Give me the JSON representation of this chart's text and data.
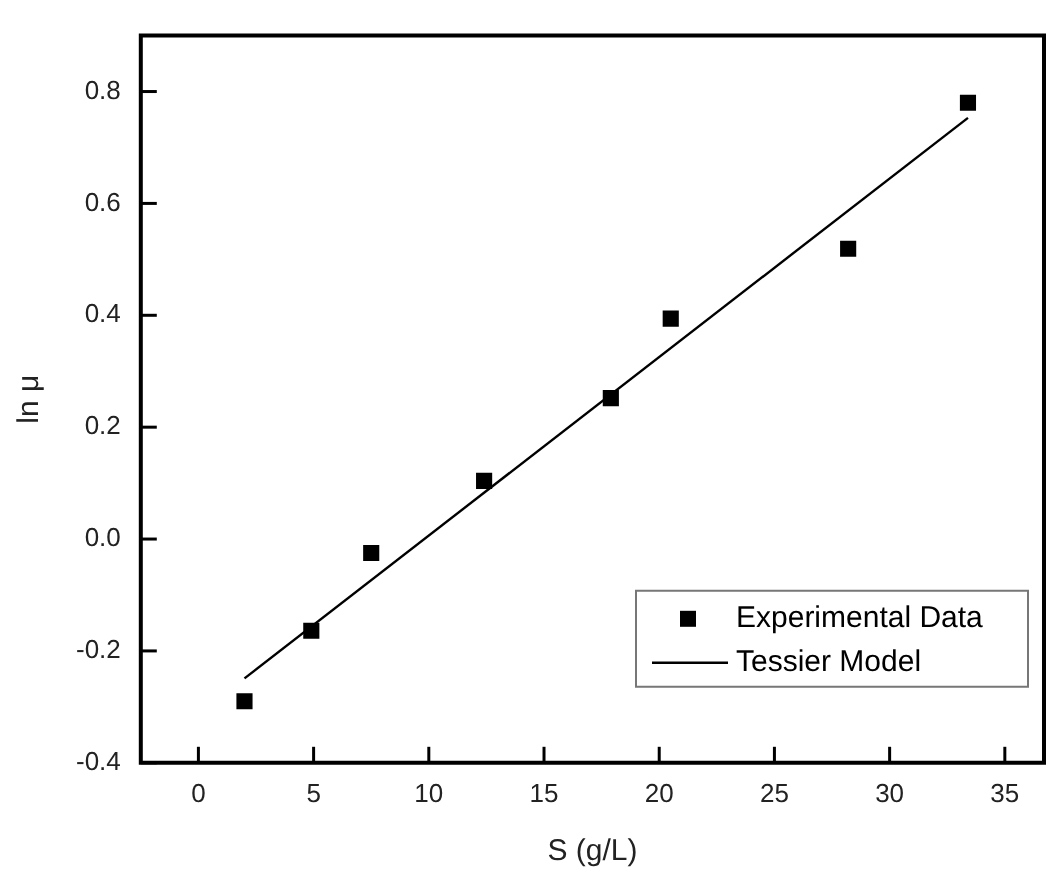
{
  "chart_data": {
    "type": "scatter",
    "xlabel": "S (g/L)",
    "ylabel": "ln μ",
    "xlim": [
      -2.5,
      36.7
    ],
    "ylim": [
      -0.4,
      0.9
    ],
    "xticks": [
      0,
      5,
      10,
      15,
      20,
      25,
      30,
      35
    ],
    "yticks": [
      {
        "value": -0.4,
        "label": "-0.4"
      },
      {
        "value": -0.2,
        "label": "-0.2"
      },
      {
        "value": 0,
        "label": "0.0"
      },
      0.2,
      0.4,
      0.6,
      0.8
    ],
    "grid": false,
    "legend": "bottom right",
    "series": [
      {
        "name": "Experimental Data",
        "color": "#000000",
        "marker": "square",
        "x": [
          2.0,
          4.9,
          7.5,
          12.4,
          17.9,
          20.5,
          28.2,
          33.4
        ],
        "values": [
          -0.29,
          -0.164,
          -0.025,
          0.104,
          0.252,
          0.394,
          0.519,
          0.78
        ]
      },
      {
        "name": "Tessier Model",
        "type": "line",
        "color": "#000000",
        "marker": "none",
        "line_style": "solid",
        "x": [
          2.0,
          33.4
        ],
        "values": [
          -0.249,
          0.753
        ]
      }
    ]
  }
}
